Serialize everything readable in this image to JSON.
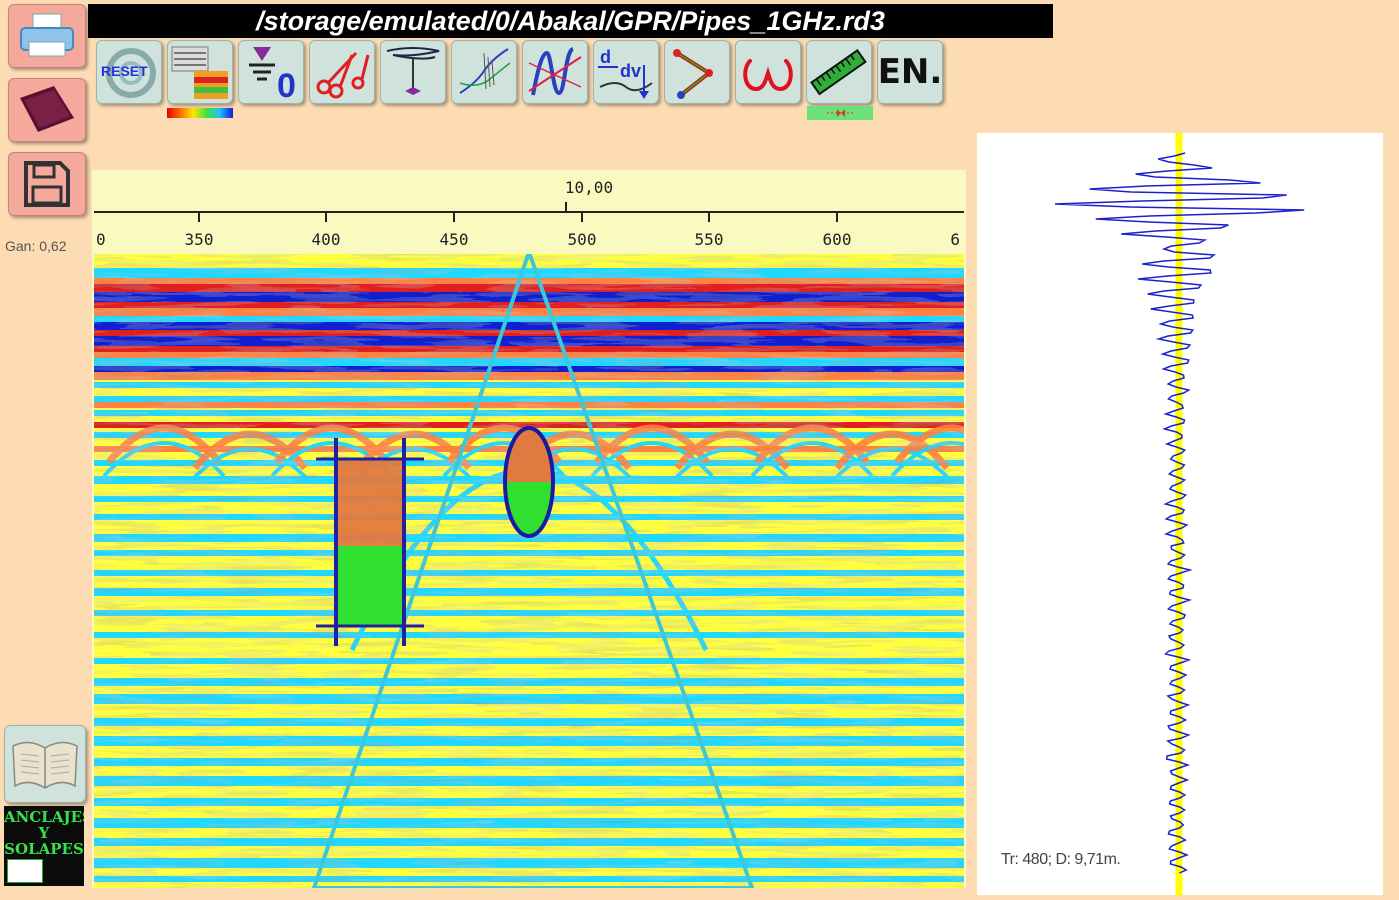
{
  "window": {
    "title": "/storage/emulated/0/Abakal/GPR/Pipes_1GHz.rd3"
  },
  "sidebar": {
    "gain_label": "Gan: 0,62",
    "buttons": [
      {
        "name": "print",
        "icon": "printer-icon"
      },
      {
        "name": "open",
        "icon": "folder-icon"
      },
      {
        "name": "save",
        "icon": "floppy-disk-icon"
      }
    ],
    "manual": {
      "icon": "book-icon"
    },
    "promo": {
      "line1": "ANCLAJES",
      "line2": "Y",
      "line3": "SOLAPES"
    }
  },
  "toolbar": {
    "reset_label": "RESET",
    "language_label": "EN.",
    "tools": [
      {
        "name": "reset",
        "icon": "reset-icon"
      },
      {
        "name": "palette",
        "icon": "color-palette-icon"
      },
      {
        "name": "zero-level",
        "icon": "zero-level-icon"
      },
      {
        "name": "cut",
        "icon": "scissors-icon"
      },
      {
        "name": "time-zero",
        "icon": "time-zero-icon"
      },
      {
        "name": "filter",
        "icon": "filter-wave-icon"
      },
      {
        "name": "normalize",
        "icon": "normalize-icon"
      },
      {
        "name": "derivative",
        "icon": "derivative-icon"
      },
      {
        "name": "migration",
        "icon": "hyperbola-fit-icon"
      },
      {
        "name": "frequency",
        "icon": "omega-icon"
      },
      {
        "name": "ruler",
        "icon": "ruler-icon"
      },
      {
        "name": "language",
        "icon": "language-icon"
      }
    ],
    "ruler_indicator": "-->←--"
  },
  "radargram": {
    "distance_label": "10,00",
    "x_ticks": [
      "0",
      "350",
      "400",
      "450",
      "500",
      "550",
      "600",
      "6"
    ],
    "palette": [
      "#ffff40",
      "#20d8ff",
      "#ff8040",
      "#e02020",
      "#1020d0",
      "#40e040"
    ]
  },
  "trace": {
    "readout": "Tr: 480; D: 9,71m.",
    "trace_color": "#1a22cc",
    "marker_color": "#ffff00"
  }
}
